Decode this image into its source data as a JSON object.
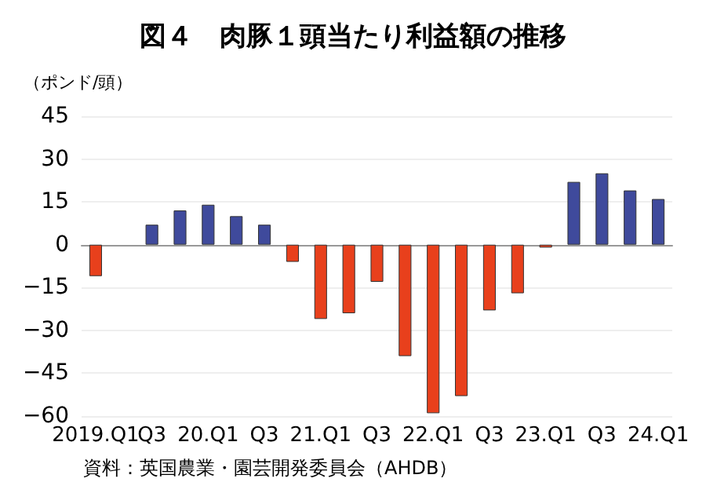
{
  "chart_data": {
    "type": "bar",
    "title": "図４　肉豚１頭当たり利益額の推移",
    "ylabel": "（ポンド/頭）",
    "categories": [
      "2019.Q1",
      null,
      "Q3",
      null,
      "20.Q1",
      null,
      "Q3",
      null,
      "21.Q1",
      null,
      "Q3",
      null,
      "22.Q1",
      null,
      "Q3",
      null,
      "23.Q1",
      null,
      "Q3",
      null,
      "24.Q1"
    ],
    "values": [
      -11,
      null,
      7,
      12,
      14,
      10,
      7,
      -6,
      -26,
      -24,
      -13,
      -39,
      -59,
      -53,
      -23,
      -17,
      -1,
      22,
      25,
      19,
      16
    ],
    "colors": [
      "#e8401c",
      null,
      "#3f4a9c",
      "#3f4a9c",
      "#3f4a9c",
      "#3f4a9c",
      "#3f4a9c",
      "#e8401c",
      "#e8401c",
      "#e8401c",
      "#e8401c",
      "#e8401c",
      "#e8401c",
      "#e8401c",
      "#e8401c",
      "#e8401c",
      "#e8401c",
      "#3f4a9c",
      "#3f4a9c",
      "#3f4a9c",
      "#3f4a9c"
    ],
    "ylim": [
      -60,
      45
    ],
    "yticks": [
      -60,
      -45,
      -30,
      -15,
      0,
      15,
      30,
      45
    ],
    "grid": "y",
    "annotations": [
      "資料：英国農業・園芸開発委員会（AHDB）"
    ]
  }
}
